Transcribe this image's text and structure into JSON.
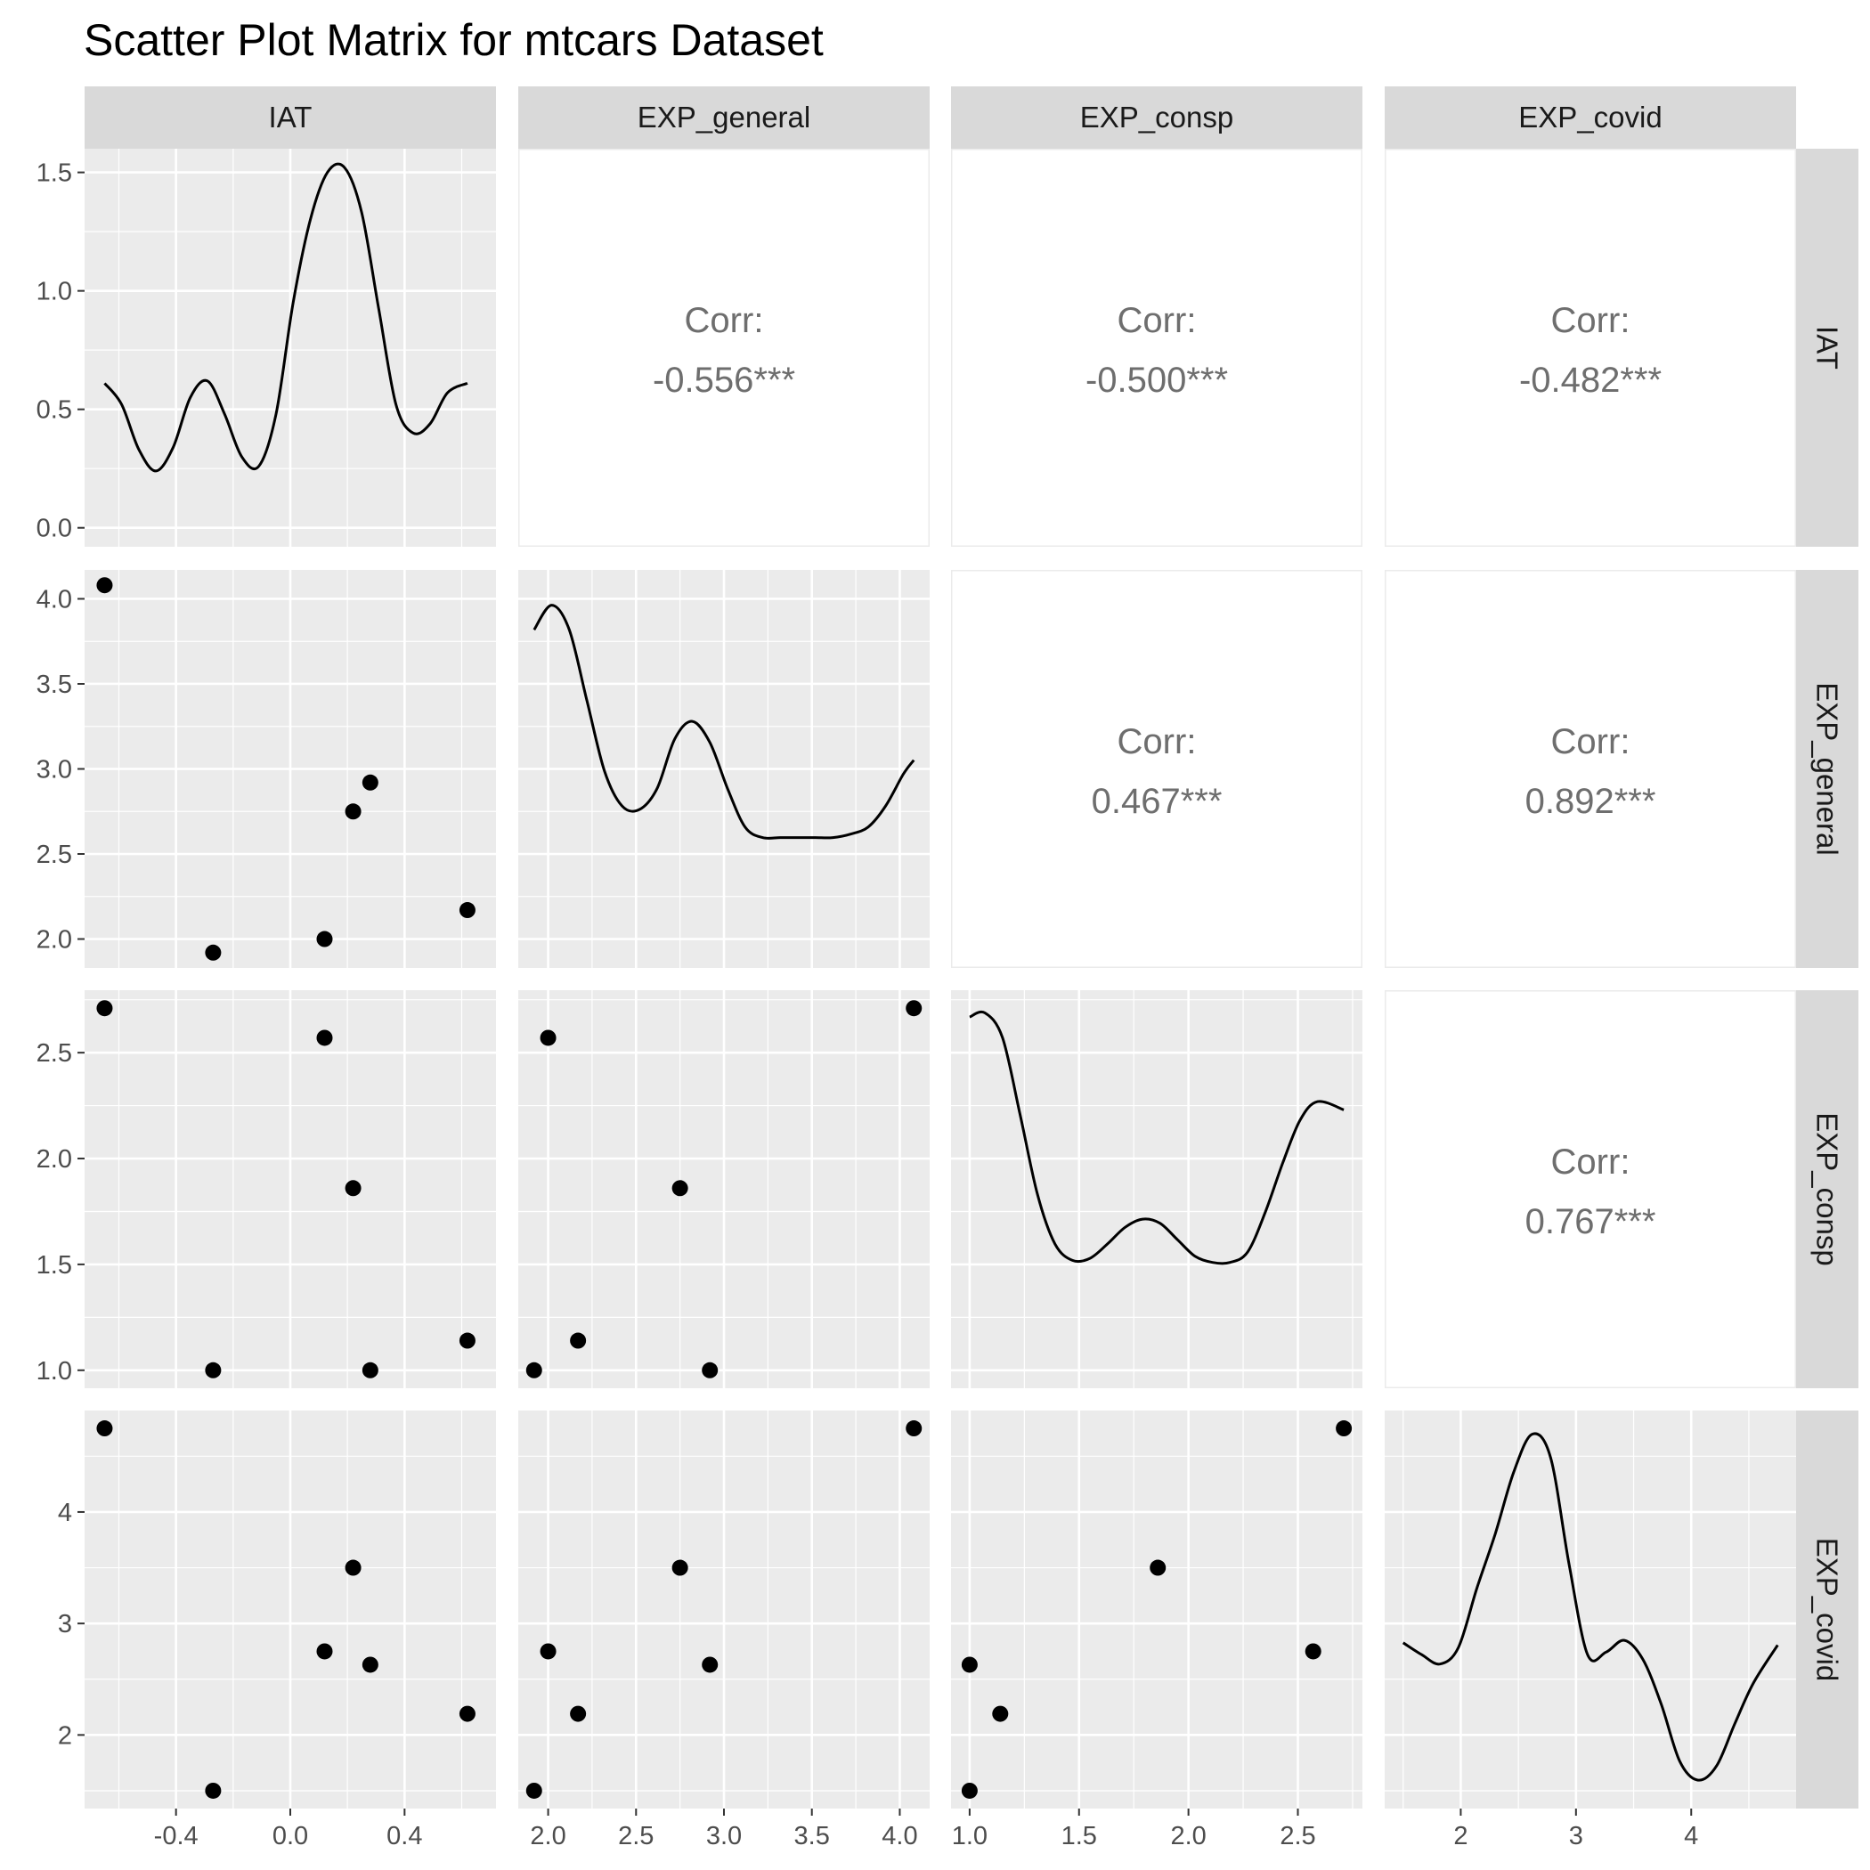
{
  "chart_data": {
    "type": "scatter",
    "title": "Scatter Plot Matrix for mtcars Dataset",
    "variables": [
      "IAT",
      "EXP_general",
      "EXP_consp",
      "EXP_covid"
    ],
    "points": {
      "IAT": [
        -0.65,
        -0.27,
        0.12,
        0.22,
        0.28,
        0.62
      ],
      "EXP_general": [
        4.08,
        1.92,
        2.0,
        2.75,
        2.92,
        2.17
      ],
      "EXP_consp": [
        2.71,
        1.0,
        2.57,
        1.86,
        1.0,
        1.14
      ],
      "EXP_covid": [
        4.75,
        1.5,
        2.75,
        3.5,
        2.63,
        2.19
      ]
    },
    "correlations": [
      {
        "row": "IAT",
        "col": "EXP_general",
        "label": "Corr:",
        "value": "-0.556***"
      },
      {
        "row": "IAT",
        "col": "EXP_consp",
        "label": "Corr:",
        "value": "-0.500***"
      },
      {
        "row": "IAT",
        "col": "EXP_covid",
        "label": "Corr:",
        "value": "-0.482***"
      },
      {
        "row": "EXP_general",
        "col": "EXP_consp",
        "label": "Corr:",
        "value": "0.467***"
      },
      {
        "row": "EXP_general",
        "col": "EXP_covid",
        "label": "Corr:",
        "value": "0.892***"
      },
      {
        "row": "EXP_consp",
        "col": "EXP_covid",
        "label": "Corr:",
        "value": "0.767***"
      }
    ],
    "x_axes": [
      {
        "variable": "IAT",
        "range": [
          -0.72,
          0.72
        ],
        "ticks": [
          -0.4,
          0.0,
          0.4
        ],
        "tick_labels": [
          "-0.4",
          "0.0",
          "0.4"
        ]
      },
      {
        "variable": "EXP_general",
        "range": [
          1.83,
          4.17
        ],
        "ticks": [
          2.0,
          2.5,
          3.0,
          3.5,
          4.0
        ],
        "tick_labels": [
          "2.0",
          "2.5",
          "3.0",
          "3.5",
          "4.0"
        ]
      },
      {
        "variable": "EXP_consp",
        "range": [
          0.915,
          2.795
        ],
        "ticks": [
          1.0,
          1.5,
          2.0,
          2.5
        ],
        "tick_labels": [
          "1.0",
          "1.5",
          "2.0",
          "2.5"
        ]
      },
      {
        "variable": "EXP_covid",
        "range": [
          1.34,
          4.91
        ],
        "ticks": [
          2,
          3,
          4
        ],
        "tick_labels": [
          "2",
          "3",
          "4"
        ]
      }
    ],
    "y_axes": [
      {
        "variable": "IAT",
        "range": [
          -0.08,
          1.6
        ],
        "ticks": [
          0.0,
          0.5,
          1.0,
          1.5
        ],
        "tick_labels": [
          "0.0",
          "0.5",
          "1.0",
          "1.5"
        ],
        "note": "density scale of IAT diagonal"
      },
      {
        "variable": "EXP_general",
        "range": [
          1.83,
          4.17
        ],
        "ticks": [
          2.0,
          2.5,
          3.0,
          3.5,
          4.0
        ],
        "tick_labels": [
          "2.0",
          "2.5",
          "3.0",
          "3.5",
          "4.0"
        ]
      },
      {
        "variable": "EXP_consp",
        "range": [
          0.915,
          2.795
        ],
        "ticks": [
          1.0,
          1.5,
          2.0,
          2.5
        ],
        "tick_labels": [
          "1.0",
          "1.5",
          "2.0",
          "2.5"
        ]
      },
      {
        "variable": "EXP_covid",
        "range": [
          1.34,
          4.91
        ],
        "ticks": [
          2,
          3,
          4
        ],
        "tick_labels": [
          "2",
          "3",
          "4"
        ]
      }
    ],
    "densities": [
      {
        "variable": "IAT",
        "x": [
          -0.65,
          -0.59,
          -0.53,
          -0.47,
          -0.41,
          -0.35,
          -0.29,
          -0.23,
          -0.17,
          -0.11,
          -0.05,
          0.01,
          0.07,
          0.13,
          0.19,
          0.25,
          0.31,
          0.37,
          0.43,
          0.49,
          0.55,
          0.62
        ],
        "y": [
          0.61,
          0.52,
          0.33,
          0.24,
          0.34,
          0.55,
          0.62,
          0.48,
          0.3,
          0.26,
          0.48,
          0.95,
          1.3,
          1.5,
          1.52,
          1.33,
          0.92,
          0.52,
          0.4,
          0.44,
          0.57,
          0.61
        ]
      },
      {
        "variable": "EXP_general",
        "x": [
          1.92,
          2.02,
          2.12,
          2.22,
          2.32,
          2.42,
          2.52,
          2.62,
          2.72,
          2.82,
          2.92,
          3.02,
          3.12,
          3.22,
          3.32,
          3.42,
          3.52,
          3.62,
          3.72,
          3.82,
          3.92,
          4.02,
          4.08
        ],
        "y": [
          0.88,
          0.95,
          0.88,
          0.68,
          0.48,
          0.38,
          0.37,
          0.43,
          0.57,
          0.62,
          0.56,
          0.43,
          0.32,
          0.29,
          0.29,
          0.29,
          0.29,
          0.29,
          0.3,
          0.32,
          0.38,
          0.47,
          0.51
        ]
      },
      {
        "variable": "EXP_consp",
        "x": [
          1.0,
          1.07,
          1.15,
          1.23,
          1.31,
          1.39,
          1.47,
          1.55,
          1.63,
          1.71,
          1.79,
          1.87,
          1.95,
          2.03,
          2.11,
          2.19,
          2.27,
          2.35,
          2.43,
          2.51,
          2.59,
          2.71
        ],
        "y": [
          1.72,
          1.74,
          1.62,
          1.25,
          0.86,
          0.62,
          0.54,
          0.55,
          0.62,
          0.7,
          0.74,
          0.72,
          0.64,
          0.56,
          0.53,
          0.53,
          0.58,
          0.77,
          1.01,
          1.22,
          1.31,
          1.27
        ]
      },
      {
        "variable": "EXP_covid",
        "x": [
          1.5,
          1.66,
          1.82,
          1.98,
          2.14,
          2.3,
          2.46,
          2.62,
          2.78,
          2.94,
          3.1,
          3.26,
          3.42,
          3.58,
          3.74,
          3.9,
          4.06,
          4.22,
          4.38,
          4.54,
          4.75
        ],
        "y": [
          0.62,
          0.57,
          0.53,
          0.6,
          0.85,
          1.08,
          1.34,
          1.5,
          1.4,
          0.95,
          0.57,
          0.58,
          0.63,
          0.55,
          0.36,
          0.12,
          0.04,
          0.1,
          0.28,
          0.45,
          0.61
        ]
      }
    ],
    "density_y_max": [
      1.6,
      1.05,
      1.85,
      1.6
    ],
    "grid": true,
    "legend": "none"
  }
}
